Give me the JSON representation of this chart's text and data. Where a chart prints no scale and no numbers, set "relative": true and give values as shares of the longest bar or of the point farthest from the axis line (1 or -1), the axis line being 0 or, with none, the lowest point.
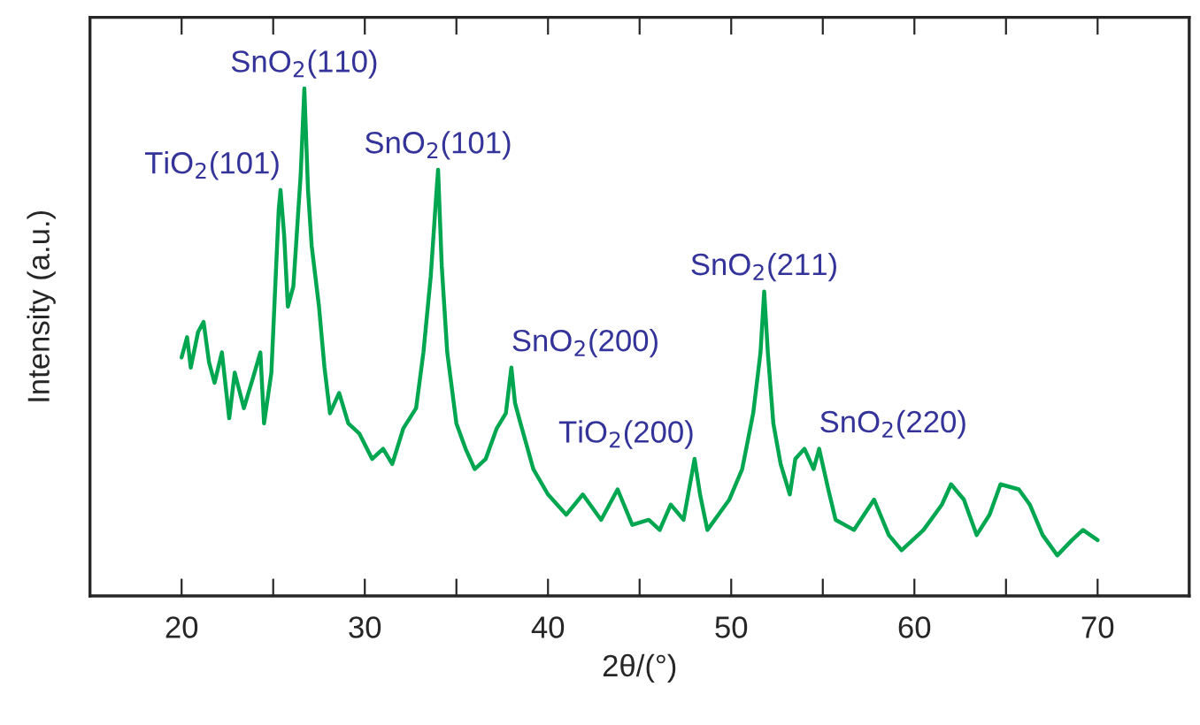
{
  "chart_data": {
    "type": "line",
    "relative": true,
    "xlabel": "2θ/(°)",
    "ylabel": "Intensity (a.u.)",
    "xlim": [
      15,
      75
    ],
    "xticks": [
      20,
      {
        "value": 25,
        "label": null
      },
      30,
      {
        "value": 35,
        "label": null
      },
      40,
      {
        "value": 45,
        "label": null
      },
      50,
      {
        "value": 55,
        "label": null
      },
      60,
      {
        "value": 65,
        "label": null
      },
      70
    ],
    "grid": false,
    "legend": false,
    "marker": "none",
    "line_style": "solid",
    "series": [
      {
        "color": "#00a650",
        "x": [
          20.0,
          20.3,
          20.5,
          20.9,
          21.2,
          21.5,
          21.8,
          22.2,
          22.6,
          22.9,
          23.4,
          23.9,
          24.3,
          24.5,
          24.9,
          25.0,
          25.3,
          25.4,
          25.6,
          25.8,
          26.1,
          26.3,
          26.5,
          26.7,
          26.9,
          27.1,
          27.5,
          27.8,
          28.1,
          28.6,
          29.1,
          29.7,
          30.4,
          31.0,
          31.5,
          32.1,
          32.8,
          33.2,
          33.6,
          33.9,
          34.0,
          34.2,
          34.5,
          35.0,
          35.5,
          36.0,
          36.6,
          37.2,
          37.7,
          38.0,
          38.2,
          38.5,
          39.2,
          40.0,
          41.0,
          41.9,
          42.9,
          43.8,
          44.6,
          45.5,
          46.1,
          46.7,
          47.4,
          48.0,
          48.3,
          48.7,
          49.3,
          49.9,
          50.6,
          51.2,
          51.6,
          51.8,
          52.0,
          52.3,
          52.7,
          53.2,
          53.5,
          54.0,
          54.5,
          54.8,
          55.3,
          55.7,
          56.7,
          57.8,
          58.6,
          59.3,
          60.5,
          61.5,
          62.0,
          62.7,
          63.4,
          64.1,
          64.7,
          65.7,
          66.3,
          67.0,
          67.8,
          68.6,
          69.2,
          70.0
        ],
        "values": [
          0.47,
          0.51,
          0.45,
          0.52,
          0.54,
          0.46,
          0.42,
          0.48,
          0.35,
          0.44,
          0.37,
          0.43,
          0.48,
          0.34,
          0.44,
          0.52,
          0.76,
          0.8,
          0.71,
          0.57,
          0.61,
          0.72,
          0.83,
          1.0,
          0.8,
          0.69,
          0.57,
          0.45,
          0.36,
          0.4,
          0.34,
          0.32,
          0.27,
          0.29,
          0.26,
          0.33,
          0.37,
          0.48,
          0.63,
          0.79,
          0.84,
          0.65,
          0.48,
          0.34,
          0.29,
          0.25,
          0.27,
          0.33,
          0.36,
          0.45,
          0.38,
          0.34,
          0.25,
          0.2,
          0.16,
          0.2,
          0.15,
          0.21,
          0.14,
          0.15,
          0.13,
          0.18,
          0.15,
          0.27,
          0.2,
          0.13,
          0.16,
          0.19,
          0.25,
          0.36,
          0.48,
          0.6,
          0.48,
          0.34,
          0.26,
          0.2,
          0.27,
          0.29,
          0.25,
          0.29,
          0.21,
          0.15,
          0.13,
          0.19,
          0.12,
          0.09,
          0.13,
          0.18,
          0.22,
          0.19,
          0.12,
          0.16,
          0.22,
          0.21,
          0.18,
          0.12,
          0.08,
          0.11,
          0.13,
          0.11
        ]
      }
    ],
    "annotations": [
      {
        "text": "TiO$_{2}$(101)",
        "x": 25.4,
        "y": 0.8
      },
      {
        "text": "SnO$_{2}$(110)",
        "x": 26.7,
        "y": 1.0
      },
      {
        "text": "SnO$_{2}$(101)",
        "x": 34.0,
        "y": 0.84
      },
      {
        "text": "SnO$_{2}$(200)",
        "x": 38.0,
        "y": 0.45
      },
      {
        "text": "TiO$_{2}$(200)",
        "x": 48.0,
        "y": 0.27
      },
      {
        "text": "SnO$_{2}$(211)",
        "x": 51.8,
        "y": 0.6
      },
      {
        "text": "SnO$_{2}$(220)",
        "x": 54.8,
        "y": 0.29
      }
    ]
  }
}
